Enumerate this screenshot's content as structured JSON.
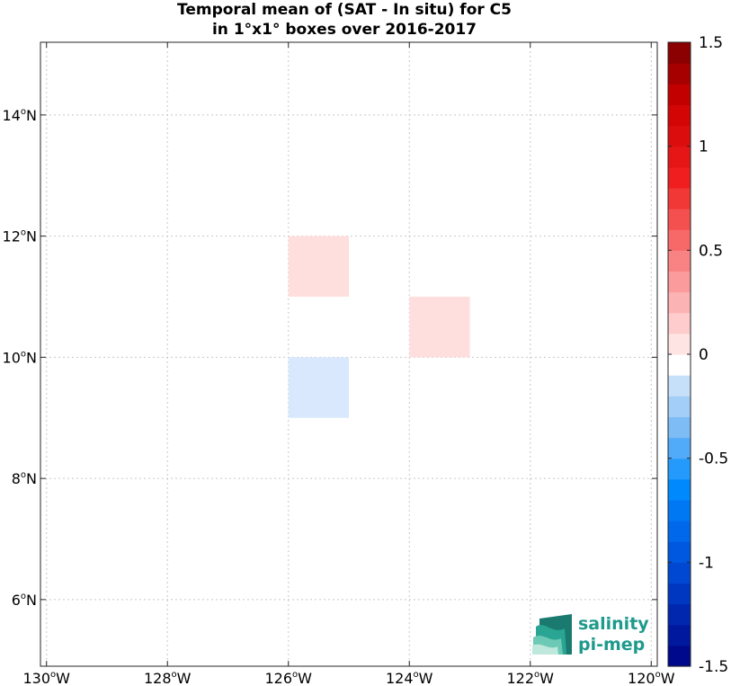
{
  "chart_data": {
    "type": "heatmap",
    "title_line1": "Temporal mean of (SAT - In situ) for C5",
    "title_line2": "in 1°x1° boxes over 2016-2017",
    "x_ticks": [
      {
        "value": -130,
        "deg": "130",
        "hemi": "W"
      },
      {
        "value": -128,
        "deg": "128",
        "hemi": "W"
      },
      {
        "value": -126,
        "deg": "126",
        "hemi": "W"
      },
      {
        "value": -124,
        "deg": "124",
        "hemi": "W"
      },
      {
        "value": -122,
        "deg": "122",
        "hemi": "W"
      },
      {
        "value": -120,
        "deg": "120",
        "hemi": "W"
      }
    ],
    "y_ticks": [
      {
        "value": 6,
        "deg": "6",
        "hemi": "N"
      },
      {
        "value": 8,
        "deg": "8",
        "hemi": "N"
      },
      {
        "value": 10,
        "deg": "10",
        "hemi": "N"
      },
      {
        "value": 12,
        "deg": "12",
        "hemi": "N"
      },
      {
        "value": 14,
        "deg": "14",
        "hemi": "N"
      }
    ],
    "xlim": [
      -130.1,
      -119.9
    ],
    "ylim": [
      4.9,
      15.2
    ],
    "grid": true,
    "cells": [
      {
        "lon_min": -126,
        "lon_max": -125,
        "lat_min": 11,
        "lat_max": 12,
        "value": 0.1
      },
      {
        "lon_min": -124,
        "lon_max": -123,
        "lat_min": 10,
        "lat_max": 11,
        "value": 0.1
      },
      {
        "lon_min": -126,
        "lon_max": -125,
        "lat_min": 9,
        "lat_max": 10,
        "value": -0.1
      }
    ],
    "colorbar": {
      "min": -1.5,
      "max": 1.5,
      "levels": 30,
      "tick_values": [
        1.5,
        1,
        0.5,
        0,
        -0.5,
        -1,
        -1.5
      ],
      "tick_labels": [
        "1.5",
        "1",
        "0.5",
        "0",
        "-0.5",
        "-1",
        "-1.5"
      ]
    }
  },
  "logo": {
    "line1": "salinity",
    "line2": "pi-mep",
    "color": "#1e9a8c"
  }
}
